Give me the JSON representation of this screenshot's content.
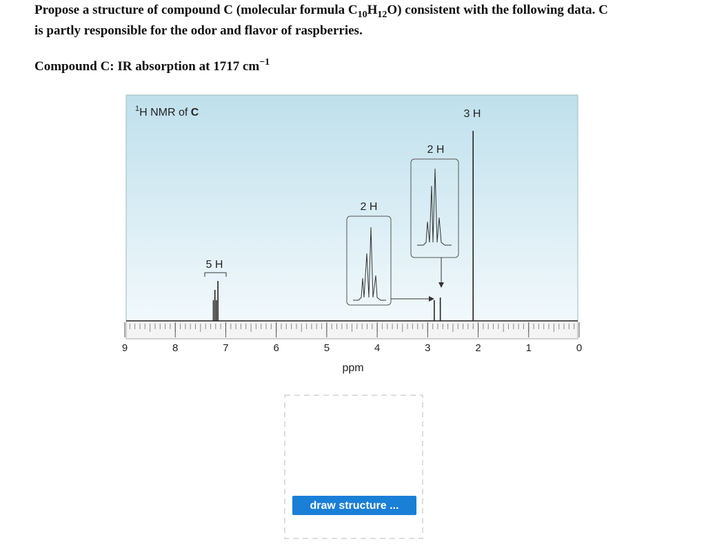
{
  "question": {
    "line1": [
      "Propose a structure of compound C (molecular formula C",
      "10",
      "H",
      "12",
      "O) consistent with the following data. C"
    ],
    "line2": "is partly responsible for the odor and flavor of raspberries.",
    "ir": [
      "Compound C: IR absorption at 1717 cm",
      "−1"
    ]
  },
  "nmr": {
    "title": [
      "1",
      "H NMR of ",
      "C"
    ],
    "xlabel": "ppm",
    "xlim": [
      9,
      0
    ],
    "xticks": [
      9,
      8,
      7,
      6,
      5,
      4,
      3,
      2,
      1,
      0
    ],
    "peaks": [
      {
        "label": "5 H",
        "ppm": 7.2
      },
      {
        "label": "2 H",
        "ppm": 2.87
      },
      {
        "label": "2 H",
        "ppm": 2.75
      },
      {
        "label": "3 H",
        "ppm": 2.1
      }
    ]
  },
  "button": "draw structure ..."
}
